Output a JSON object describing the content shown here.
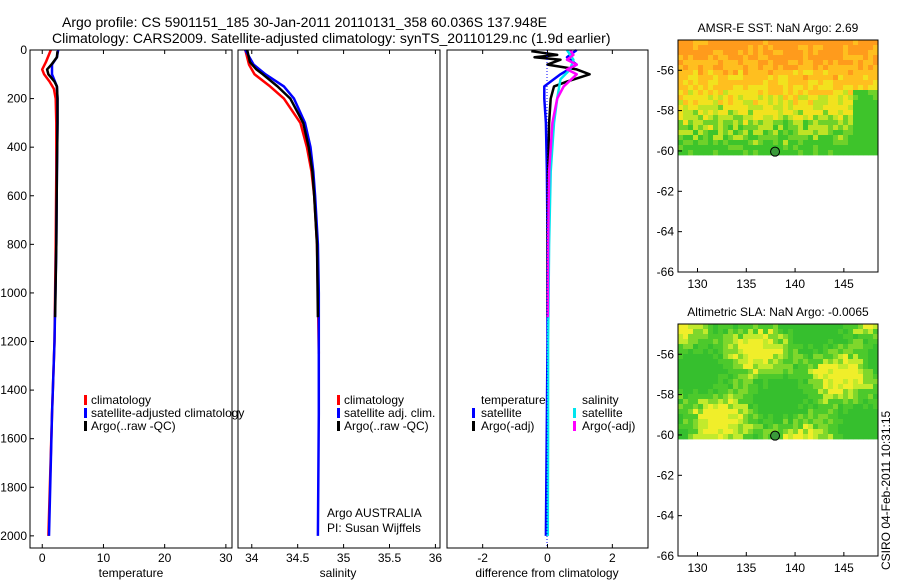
{
  "header": {
    "line1": "Argo profile: CS 5901151_185 30-Jan-2011 20110131_358 60.036S 137.948E",
    "line2": "Climatology: CARS2009. Satellite-adjusted climatology: synTS_20110129.nc (1.9d earlier)"
  },
  "footer": {
    "stamp": "CSIRO 04-Feb-2011 10:31:15",
    "argo_label": "Argo AUSTRALIA",
    "pi_label": "PI: Susan Wijffels"
  },
  "colors": {
    "climatology": "#ff0000",
    "satellite": "#0000ff",
    "argo": "#000000",
    "sal_satellite": "#00e5ee",
    "sal_argo": "#ff00ff"
  },
  "chart_data": [
    {
      "type": "line",
      "id": "temperature",
      "xlabel": "temperature",
      "ylabel": "",
      "xlim": [
        -2,
        31
      ],
      "ylim": [
        2050,
        0
      ],
      "xticks": [
        0,
        10,
        20,
        30
      ],
      "yticks": [
        0,
        200,
        400,
        600,
        800,
        1000,
        1200,
        1400,
        1600,
        1800,
        2000
      ],
      "legend": [
        "climatology",
        "satellite-adjusted climatology",
        "Argo(..raw -QC)"
      ],
      "series": [
        {
          "name": "climatology",
          "color": "#ff0000",
          "depth": [
            0,
            50,
            80,
            100,
            130,
            160,
            200,
            300,
            500,
            800,
            1200,
            1500,
            2000
          ],
          "values": [
            1.4,
            0.6,
            0.0,
            0.3,
            1.2,
            1.9,
            2.2,
            2.3,
            2.3,
            2.2,
            2.0,
            1.6,
            1.0
          ]
        },
        {
          "name": "satellite-adjusted climatology",
          "color": "#0000ff",
          "depth": [
            0,
            30,
            60,
            100,
            150,
            200,
            300,
            500,
            800,
            1200,
            1500,
            2000
          ],
          "values": [
            2.6,
            2.4,
            1.6,
            1.6,
            2.4,
            2.5,
            2.5,
            2.4,
            2.3,
            2.0,
            1.6,
            1.1
          ]
        },
        {
          "name": "Argo(..raw -QC)",
          "color": "#000000",
          "depth": [
            5,
            30,
            60,
            80,
            100,
            130,
            150,
            200,
            300,
            500,
            800,
            1100
          ],
          "values": [
            2.5,
            2.4,
            1.5,
            0.8,
            1.0,
            2.0,
            2.4,
            2.5,
            2.5,
            2.4,
            2.3,
            2.1
          ]
        }
      ]
    },
    {
      "type": "line",
      "id": "salinity",
      "xlabel": "salinity",
      "ylabel": "",
      "xlim": [
        33.85,
        36.05
      ],
      "ylim": [
        2050,
        0
      ],
      "xticks": [
        34,
        34.5,
        35,
        35.5,
        36
      ],
      "xticklabels": [
        "34",
        "34.5",
        "35",
        "35.5",
        "36"
      ],
      "legend": [
        "climatology",
        "satellite adj. clim.",
        "Argo(..raw -QC)"
      ],
      "series": [
        {
          "name": "climatology",
          "color": "#ff0000",
          "depth": [
            0,
            60,
            100,
            150,
            200,
            300,
            400,
            500,
            600,
            800,
            1000,
            1250
          ],
          "values": [
            33.93,
            33.97,
            34.03,
            34.2,
            34.35,
            34.53,
            34.6,
            34.65,
            34.68,
            34.71,
            34.72,
            34.73
          ]
        },
        {
          "name": "satellite adj. clim.",
          "color": "#0000ff",
          "depth": [
            0,
            60,
            100,
            150,
            200,
            300,
            400,
            500,
            600,
            800,
            1000,
            1500,
            2000
          ],
          "values": [
            33.93,
            34.02,
            34.15,
            34.35,
            34.46,
            34.58,
            34.64,
            34.67,
            34.69,
            34.72,
            34.73,
            34.73,
            34.72
          ]
        },
        {
          "name": "Argo(..raw -QC)",
          "color": "#000000",
          "depth": [
            0,
            50,
            80,
            100,
            150,
            200,
            300,
            400,
            500,
            600,
            800,
            1100
          ],
          "values": [
            33.95,
            33.98,
            34.05,
            34.12,
            34.28,
            34.42,
            34.56,
            34.62,
            34.66,
            34.68,
            34.71,
            34.72
          ]
        }
      ]
    },
    {
      "type": "line",
      "id": "difference",
      "xlabel": "difference from climatology",
      "ylabel": "",
      "xlim": [
        -3.1,
        3.1
      ],
      "ylim": [
        2050,
        0
      ],
      "xticks": [
        -2,
        0,
        2
      ],
      "legend_temperature_title": "temperature",
      "legend_salinity_title": "salinity",
      "legend_temperature": [
        "satellite",
        "Argo(-adj)"
      ],
      "legend_salinity": [
        "satellite",
        "Argo(-adj)"
      ],
      "series": [
        {
          "name": "temperature satellite",
          "color": "#0000ff",
          "depth": [
            0,
            30,
            60,
            100,
            150,
            200,
            300,
            500,
            800,
            1200,
            1500,
            2000
          ],
          "values": [
            0.9,
            0.6,
            0.9,
            0.4,
            -0.1,
            -0.1,
            -0.05,
            -0.02,
            0.0,
            0.0,
            -0.02,
            -0.05
          ]
        },
        {
          "name": "temperature Argo(-adj)",
          "color": "#000000",
          "depth": [
            5,
            20,
            30,
            40,
            60,
            80,
            100,
            130,
            150,
            200,
            300,
            500,
            800,
            1100
          ],
          "values": [
            -0.5,
            0.3,
            -0.4,
            0.4,
            0.0,
            0.9,
            1.3,
            0.6,
            0.2,
            0.1,
            0.05,
            0.02,
            0.0,
            0.0
          ]
        },
        {
          "name": "salinity satellite",
          "color": "#00e5ee",
          "depth": [
            0,
            40,
            80,
            120,
            200,
            300,
            500,
            800,
            1200,
            1600,
            2000
          ],
          "values": [
            0.6,
            0.8,
            0.7,
            0.4,
            0.3,
            0.2,
            0.1,
            0.05,
            0.02,
            0.02,
            0.01
          ]
        },
        {
          "name": "salinity Argo(-adj)",
          "color": "#ff00ff",
          "depth": [
            0,
            20,
            40,
            60,
            80,
            100,
            150,
            200,
            300,
            500,
            800,
            1100
          ],
          "values": [
            0.7,
            0.8,
            0.6,
            0.9,
            0.6,
            0.9,
            0.5,
            0.3,
            0.15,
            0.05,
            0.02,
            0.01
          ]
        }
      ]
    },
    {
      "type": "heatmap",
      "id": "sst-map",
      "title": "AMSR-E SST: NaN Argo: 2.69",
      "xlim": [
        128,
        148.5
      ],
      "ylim": [
        -66,
        -54.5
      ],
      "xticks": [
        130,
        135,
        140,
        145
      ],
      "yticks": [
        -56,
        -58,
        -60,
        -62,
        -64,
        -66
      ],
      "data_lat_range": [
        -60.2,
        -54.5
      ],
      "marker": {
        "lon": 137.948,
        "lat": -60.036
      },
      "palette": "warm (orange/yellow north, green south)"
    },
    {
      "type": "heatmap",
      "id": "sla-map",
      "title": "Altimetric SLA: NaN Argo: -0.0065",
      "xlim": [
        128,
        148.5
      ],
      "ylim": [
        -66,
        -54.5
      ],
      "xticks": [
        130,
        135,
        140,
        145
      ],
      "yticks": [
        -56,
        -58,
        -60,
        -62,
        -64,
        -66
      ],
      "data_lat_range": [
        -60.2,
        -54.5
      ],
      "marker": {
        "lon": 137.948,
        "lat": -60.036
      },
      "palette": "mostly green with yellow patches"
    }
  ]
}
